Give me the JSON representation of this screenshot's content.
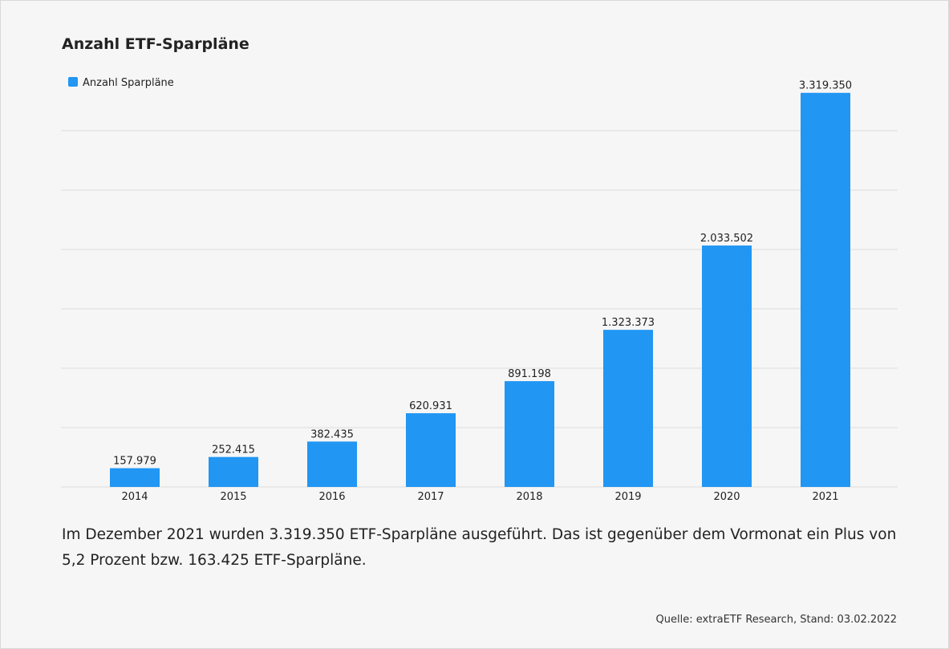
{
  "chart_data": {
    "type": "bar",
    "title": "Anzahl ETF-Sparpläne",
    "categories": [
      "2014",
      "2015",
      "2016",
      "2017",
      "2018",
      "2019",
      "2020",
      "2021"
    ],
    "series": [
      {
        "name": "Anzahl Sparpläne",
        "color": "#2196f3",
        "values": [
          157979,
          252415,
          382435,
          620931,
          891198,
          1323373,
          2033502,
          3319350
        ],
        "value_labels": [
          "157.979",
          "252.415",
          "382.435",
          "620.931",
          "891.198",
          "1.323.373",
          "2.033.502",
          "3.319.350"
        ]
      }
    ],
    "ylim": [
      0,
      3500000
    ],
    "yticks": [
      0,
      500000,
      1000000,
      1500000,
      2000000,
      2500000,
      3000000
    ],
    "grid": true
  },
  "description": "Im Dezember 2021 wurden 3.319.350 ETF-Sparpläne ausgeführt. Das ist gegenüber dem Vormonat ein Plus von 5,2 Prozent bzw. 163.425 ETF-Sparpläne.",
  "source": "Quelle: extraETF Research, Stand: 03.02.2022"
}
